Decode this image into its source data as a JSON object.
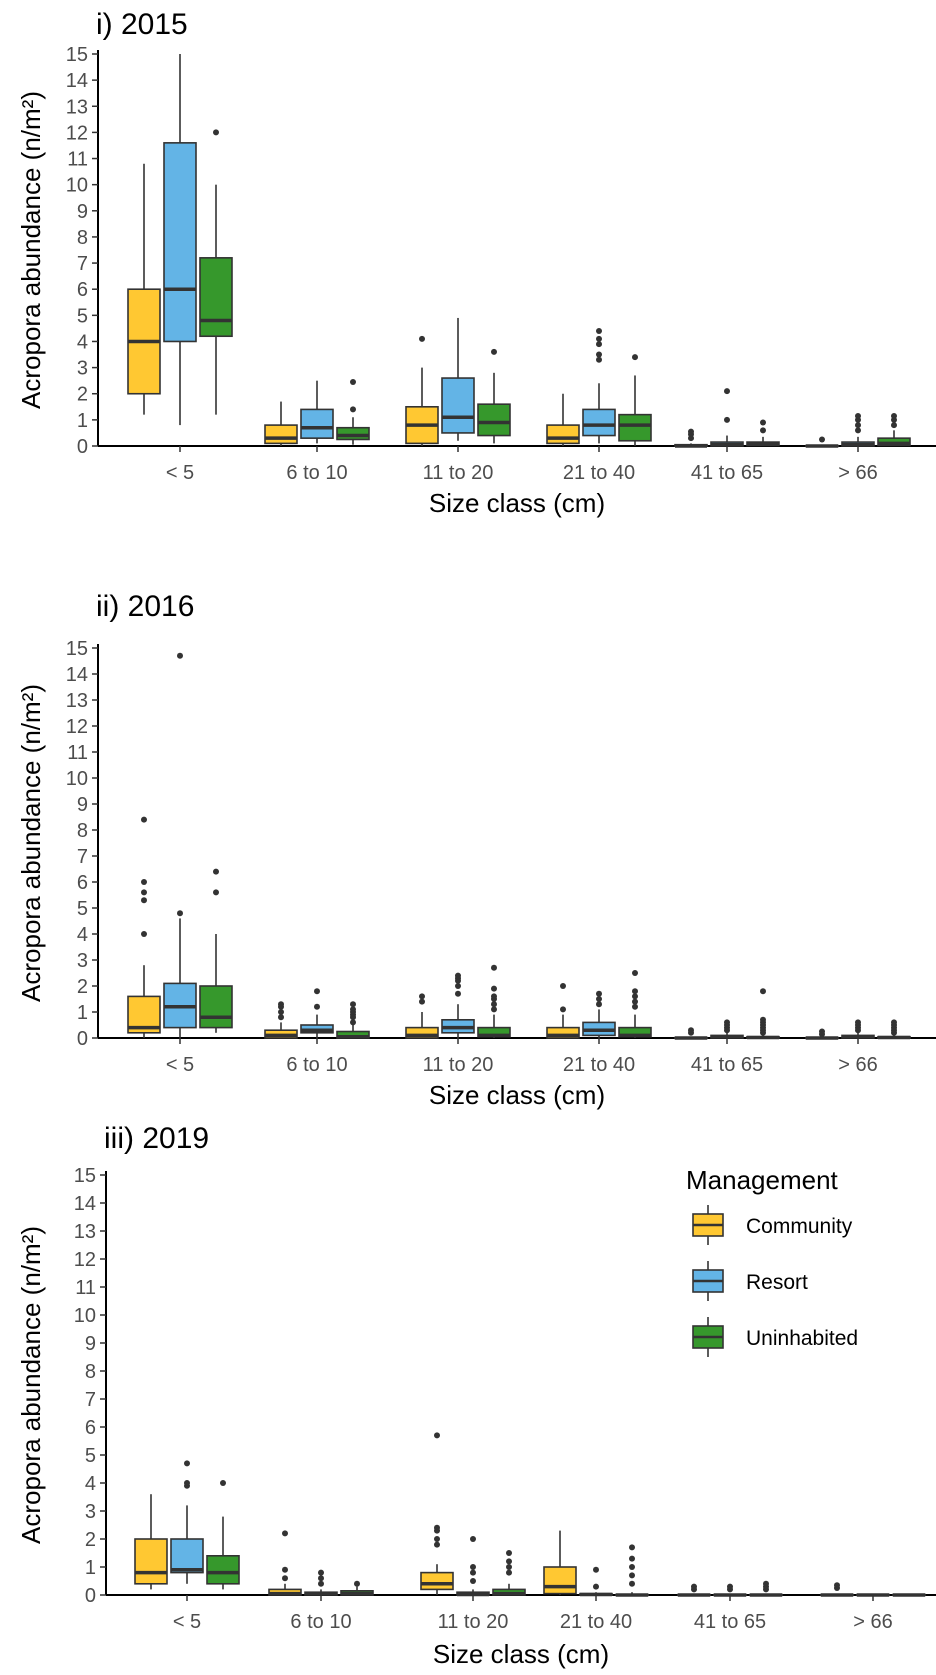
{
  "legend": {
    "title": "Management",
    "position": "top-right of panel iii",
    "entries": [
      {
        "label": "Community",
        "color": "#ffc832"
      },
      {
        "label": "Resort",
        "color": "#63b4e6"
      },
      {
        "label": "Uninhabited",
        "color": "#36982c"
      }
    ]
  },
  "chart_data": [
    {
      "type": "boxplot",
      "title": "i) 2015",
      "xlabel": "Size class (cm)",
      "ylabel": "Acropora abundance (n/m²)",
      "ylim": [
        0,
        15
      ],
      "yticks": [
        "0",
        "1",
        "2",
        "3",
        "4",
        "5",
        "6",
        "7",
        "8",
        "9",
        "10",
        "11",
        "12",
        "13",
        "14",
        "15"
      ],
      "categories": [
        "< 5",
        "6 to 10",
        "11 to 20",
        "21 to 40",
        "41 to 65",
        "> 66"
      ],
      "series": [
        {
          "name": "Community",
          "boxes": [
            {
              "min": 1.2,
              "q1": 2.0,
              "median": 4.0,
              "q3": 6.0,
              "max": 10.8,
              "outliers": []
            },
            {
              "min": 0,
              "q1": 0.1,
              "median": 0.3,
              "q3": 0.8,
              "max": 1.7,
              "outliers": []
            },
            {
              "min": 0,
              "q1": 0.1,
              "median": 0.8,
              "q3": 1.5,
              "max": 3.0,
              "outliers": [
                4.1
              ]
            },
            {
              "min": 0,
              "q1": 0.1,
              "median": 0.3,
              "q3": 0.8,
              "max": 2.0,
              "outliers": []
            },
            {
              "min": 0,
              "q1": 0,
              "median": 0,
              "q3": 0.05,
              "max": 0.1,
              "outliers": [
                0.3,
                0.45,
                0.55
              ]
            },
            {
              "min": 0,
              "q1": 0,
              "median": 0,
              "q3": 0.02,
              "max": 0.05,
              "outliers": [
                0.25
              ]
            }
          ]
        },
        {
          "name": "Resort",
          "boxes": [
            {
              "min": 0.8,
              "q1": 4.0,
              "median": 6.0,
              "q3": 11.6,
              "max": 15.0,
              "outliers": []
            },
            {
              "min": 0.1,
              "q1": 0.3,
              "median": 0.7,
              "q3": 1.4,
              "max": 2.5,
              "outliers": []
            },
            {
              "min": 0.2,
              "q1": 0.5,
              "median": 1.1,
              "q3": 2.6,
              "max": 4.9,
              "outliers": []
            },
            {
              "min": 0.1,
              "q1": 0.4,
              "median": 0.8,
              "q3": 1.4,
              "max": 2.4,
              "outliers": [
                3.3,
                3.5,
                3.9,
                4.1,
                4.4
              ]
            },
            {
              "min": 0,
              "q1": 0,
              "median": 0.05,
              "q3": 0.15,
              "max": 0.4,
              "outliers": [
                1.0,
                2.1
              ]
            },
            {
              "min": 0,
              "q1": 0,
              "median": 0.05,
              "q3": 0.15,
              "max": 0.35,
              "outliers": [
                0.6,
                0.8,
                1.0,
                1.15
              ]
            }
          ]
        },
        {
          "name": "Uninhabited",
          "boxes": [
            {
              "min": 1.2,
              "q1": 4.2,
              "median": 4.8,
              "q3": 7.2,
              "max": 10.0,
              "outliers": [
                12.0
              ]
            },
            {
              "min": 0.05,
              "q1": 0.25,
              "median": 0.4,
              "q3": 0.7,
              "max": 1.1,
              "outliers": [
                1.4,
                2.45
              ]
            },
            {
              "min": 0.1,
              "q1": 0.4,
              "median": 0.9,
              "q3": 1.6,
              "max": 2.8,
              "outliers": [
                3.6
              ]
            },
            {
              "min": 0,
              "q1": 0.2,
              "median": 0.8,
              "q3": 1.2,
              "max": 2.7,
              "outliers": [
                3.4
              ]
            },
            {
              "min": 0,
              "q1": 0.02,
              "median": 0.08,
              "q3": 0.15,
              "max": 0.35,
              "outliers": [
                0.6,
                0.9
              ]
            },
            {
              "min": 0,
              "q1": 0.02,
              "median": 0.1,
              "q3": 0.3,
              "max": 0.6,
              "outliers": [
                0.8,
                1.0,
                1.15
              ]
            }
          ]
        }
      ]
    },
    {
      "type": "boxplot",
      "title": "ii) 2016",
      "xlabel": "Size class (cm)",
      "ylabel": "Acropora abundance (n/m²)",
      "ylim": [
        0,
        15
      ],
      "yticks": [
        "0",
        "1",
        "2",
        "3",
        "4",
        "5",
        "6",
        "7",
        "8",
        "9",
        "10",
        "11",
        "12",
        "13",
        "14",
        "15"
      ],
      "categories": [
        "< 5",
        "6 to 10",
        "11 to 20",
        "21 to 40",
        "41 to 65",
        "> 66"
      ],
      "series": [
        {
          "name": "Community",
          "boxes": [
            {
              "min": 0,
              "q1": 0.2,
              "median": 0.4,
              "q3": 1.6,
              "max": 2.8,
              "outliers": [
                4.0,
                5.3,
                5.6,
                6.0,
                8.4
              ]
            },
            {
              "min": 0,
              "q1": 0,
              "median": 0.1,
              "q3": 0.3,
              "max": 0.6,
              "outliers": [
                0.8,
                1.0,
                1.2,
                1.3
              ]
            },
            {
              "min": 0,
              "q1": 0,
              "median": 0.1,
              "q3": 0.4,
              "max": 1.0,
              "outliers": [
                1.4,
                1.6
              ]
            },
            {
              "min": 0,
              "q1": 0,
              "median": 0.1,
              "q3": 0.4,
              "max": 0.9,
              "outliers": [
                1.1,
                2.0
              ]
            },
            {
              "min": 0,
              "q1": 0,
              "median": 0,
              "q3": 0.02,
              "max": 0.05,
              "outliers": [
                0.2,
                0.3
              ]
            },
            {
              "min": 0,
              "q1": 0,
              "median": 0,
              "q3": 0.02,
              "max": 0.05,
              "outliers": [
                0.15,
                0.25
              ]
            }
          ]
        },
        {
          "name": "Resort",
          "boxes": [
            {
              "min": 0,
              "q1": 0.4,
              "median": 1.2,
              "q3": 2.1,
              "max": 4.6,
              "outliers": [
                4.8,
                14.7
              ]
            },
            {
              "min": 0,
              "q1": 0.2,
              "median": 0.3,
              "q3": 0.5,
              "max": 0.9,
              "outliers": [
                1.2,
                1.8
              ]
            },
            {
              "min": 0,
              "q1": 0.2,
              "median": 0.4,
              "q3": 0.7,
              "max": 1.3,
              "outliers": [
                1.7,
                2.0,
                2.2,
                2.3,
                2.4
              ]
            },
            {
              "min": 0,
              "q1": 0.1,
              "median": 0.3,
              "q3": 0.6,
              "max": 1.1,
              "outliers": [
                1.3,
                1.5,
                1.7
              ]
            },
            {
              "min": 0,
              "q1": 0,
              "median": 0.05,
              "q3": 0.1,
              "max": 0.2,
              "outliers": [
                0.3,
                0.4,
                0.5,
                0.6
              ]
            },
            {
              "min": 0,
              "q1": 0,
              "median": 0.05,
              "q3": 0.1,
              "max": 0.2,
              "outliers": [
                0.3,
                0.4,
                0.5,
                0.6
              ]
            }
          ]
        },
        {
          "name": "Uninhabited",
          "boxes": [
            {
              "min": 0.2,
              "q1": 0.4,
              "median": 0.8,
              "q3": 2.0,
              "max": 4.0,
              "outliers": [
                5.6,
                6.4
              ]
            },
            {
              "min": 0,
              "q1": 0,
              "median": 0.05,
              "q3": 0.25,
              "max": 0.5,
              "outliers": [
                0.6,
                0.8,
                0.9,
                1.0,
                1.1,
                1.3
              ]
            },
            {
              "min": 0,
              "q1": 0.05,
              "median": 0.1,
              "q3": 0.4,
              "max": 0.9,
              "outliers": [
                1.1,
                1.3,
                1.5,
                1.6,
                1.9,
                2.7
              ]
            },
            {
              "min": 0,
              "q1": 0.05,
              "median": 0.1,
              "q3": 0.4,
              "max": 0.9,
              "outliers": [
                1.2,
                1.4,
                1.6,
                1.8,
                2.5
              ]
            },
            {
              "min": 0,
              "q1": 0,
              "median": 0.02,
              "q3": 0.05,
              "max": 0.1,
              "outliers": [
                0.2,
                0.3,
                0.4,
                0.5,
                0.6,
                0.7,
                1.8
              ]
            },
            {
              "min": 0,
              "q1": 0,
              "median": 0.02,
              "q3": 0.05,
              "max": 0.1,
              "outliers": [
                0.2,
                0.3,
                0.4,
                0.5,
                0.6
              ]
            }
          ]
        }
      ]
    },
    {
      "type": "boxplot",
      "title": "iii) 2019",
      "xlabel": "Size class (cm)",
      "ylabel": "Acropora abundance (n/m²)",
      "ylim": [
        0,
        15
      ],
      "yticks": [
        "0",
        "1",
        "2",
        "3",
        "4",
        "5",
        "6",
        "7",
        "8",
        "9",
        "10",
        "11",
        "12",
        "13",
        "14",
        "15"
      ],
      "categories": [
        "< 5",
        "6 to 10",
        "11 to 20",
        "21 to 40",
        "41 to 65",
        "> 66"
      ],
      "series": [
        {
          "name": "Community",
          "boxes": [
            {
              "min": 0.2,
              "q1": 0.4,
              "median": 0.8,
              "q3": 2.0,
              "max": 3.6,
              "outliers": []
            },
            {
              "min": 0,
              "q1": 0,
              "median": 0.05,
              "q3": 0.2,
              "max": 0.4,
              "outliers": [
                0.6,
                0.9,
                2.2
              ]
            },
            {
              "min": 0,
              "q1": 0.2,
              "median": 0.4,
              "q3": 0.8,
              "max": 1.1,
              "outliers": [
                1.8,
                2.0,
                2.3,
                2.4,
                5.7
              ]
            },
            {
              "min": 0,
              "q1": 0.05,
              "median": 0.3,
              "q3": 1.0,
              "max": 2.3,
              "outliers": []
            },
            {
              "min": 0,
              "q1": 0,
              "median": 0,
              "q3": 0.02,
              "max": 0.05,
              "outliers": [
                0.2,
                0.3
              ]
            },
            {
              "min": 0,
              "q1": 0,
              "median": 0,
              "q3": 0.02,
              "max": 0.05,
              "outliers": [
                0.25,
                0.35
              ]
            }
          ]
        },
        {
          "name": "Resort",
          "boxes": [
            {
              "min": 0.4,
              "q1": 0.8,
              "median": 0.9,
              "q3": 2.0,
              "max": 3.2,
              "outliers": [
                3.9,
                4.0,
                4.7
              ]
            },
            {
              "min": 0,
              "q1": 0,
              "median": 0.05,
              "q3": 0.1,
              "max": 0.2,
              "outliers": [
                0.4,
                0.6,
                0.8
              ]
            },
            {
              "min": 0,
              "q1": 0,
              "median": 0.02,
              "q3": 0.1,
              "max": 0.2,
              "outliers": [
                0.5,
                0.8,
                1.0,
                2.0
              ]
            },
            {
              "min": 0,
              "q1": 0,
              "median": 0.02,
              "q3": 0.05,
              "max": 0.1,
              "outliers": [
                0.3,
                0.9
              ]
            },
            {
              "min": 0,
              "q1": 0,
              "median": 0,
              "q3": 0.02,
              "max": 0.05,
              "outliers": [
                0.2,
                0.3
              ]
            },
            {
              "min": 0,
              "q1": 0,
              "median": 0,
              "q3": 0.02,
              "max": 0.05,
              "outliers": []
            }
          ]
        },
        {
          "name": "Uninhabited",
          "boxes": [
            {
              "min": 0.2,
              "q1": 0.4,
              "median": 0.8,
              "q3": 1.4,
              "max": 2.8,
              "outliers": [
                4.0
              ]
            },
            {
              "min": 0,
              "q1": 0,
              "median": 0.05,
              "q3": 0.15,
              "max": 0.3,
              "outliers": [
                0.4
              ]
            },
            {
              "min": 0,
              "q1": 0,
              "median": 0.05,
              "q3": 0.2,
              "max": 0.4,
              "outliers": [
                0.8,
                1.0,
                1.2,
                1.5
              ]
            },
            {
              "min": 0,
              "q1": 0,
              "median": 0,
              "q3": 0.02,
              "max": 0.1,
              "outliers": [
                0.4,
                0.7,
                1.0,
                1.3,
                1.7
              ]
            },
            {
              "min": 0,
              "q1": 0,
              "median": 0,
              "q3": 0.02,
              "max": 0.05,
              "outliers": [
                0.2,
                0.3,
                0.4
              ]
            },
            {
              "min": 0,
              "q1": 0,
              "median": 0,
              "q3": 0.02,
              "max": 0.05,
              "outliers": []
            }
          ]
        }
      ]
    }
  ]
}
